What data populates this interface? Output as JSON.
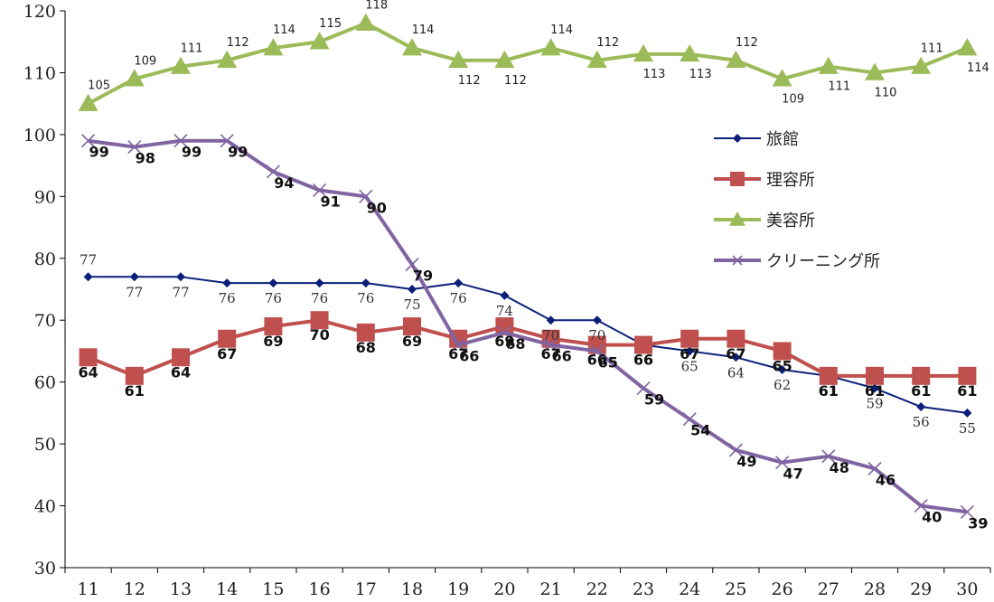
{
  "chart_data": {
    "type": "line",
    "title": "",
    "xlabel": "",
    "ylabel": "",
    "x": [
      11,
      12,
      13,
      14,
      15,
      16,
      17,
      18,
      19,
      20,
      21,
      22,
      23,
      24,
      25,
      26,
      27,
      28,
      29,
      30
    ],
    "ylim": [
      30,
      120
    ],
    "yticks": [
      30,
      40,
      50,
      60,
      70,
      80,
      90,
      100,
      110,
      120
    ],
    "grid": false,
    "legend_position": "right",
    "series": [
      {
        "name": "旅館",
        "marker": "diamond",
        "color": "#0a1f7a",
        "values": [
          77,
          77,
          77,
          76,
          76,
          76,
          76,
          75,
          76,
          74,
          70,
          70,
          66,
          65,
          64,
          62,
          61,
          59,
          56,
          55
        ]
      },
      {
        "name": "理容所",
        "marker": "square",
        "color": "#c0504d",
        "values": [
          64,
          61,
          64,
          67,
          69,
          70,
          68,
          69,
          67,
          69,
          67,
          66,
          66,
          67,
          67,
          65,
          61,
          61,
          61,
          61
        ]
      },
      {
        "name": "美容所",
        "marker": "triangle",
        "color": "#9bbb59",
        "values": [
          105,
          109,
          111,
          112,
          114,
          115,
          118,
          114,
          112,
          112,
          114,
          112,
          113,
          113,
          112,
          109,
          111,
          110,
          111,
          114
        ]
      },
      {
        "name": "クリーニング所",
        "marker": "x",
        "color": "#8064a2",
        "values": [
          99,
          98,
          99,
          99,
          94,
          91,
          90,
          79,
          66,
          68,
          66,
          65,
          59,
          54,
          49,
          47,
          48,
          46,
          40,
          39
        ]
      }
    ]
  }
}
